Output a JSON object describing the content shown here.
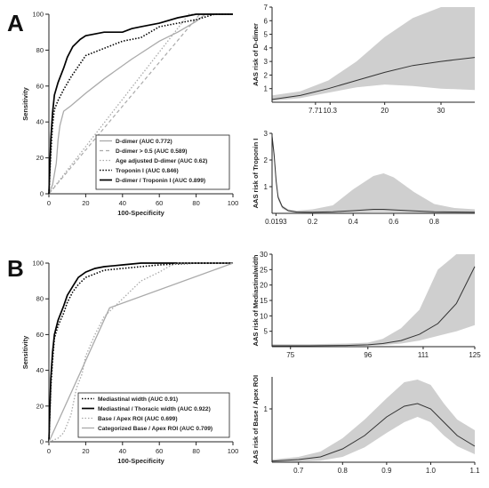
{
  "panel_labels": [
    "A",
    "B"
  ],
  "colors": {
    "axis": "#222222",
    "band": "#cfcfcf",
    "curve": "#333333",
    "light_series": "#aaaaaa",
    "dark_series": "#000000"
  },
  "chart_data": [
    {
      "id": "roc-a",
      "type": "line",
      "xlabel": "100-Specificity",
      "ylabel": "Sensitivity",
      "xlim": [
        0,
        100
      ],
      "ylim": [
        0,
        100
      ],
      "x_ticks": [
        0,
        20,
        40,
        60,
        80,
        100
      ],
      "y_ticks": [
        0,
        20,
        40,
        60,
        80,
        100
      ],
      "grid": false,
      "legend_position": "bottom-right",
      "series": [
        {
          "name": "D-dimer  (AUC 0.772)",
          "style": "solid-light",
          "x": [
            0,
            2,
            4,
            5,
            6,
            8,
            12,
            20,
            30,
            45,
            48,
            60,
            70,
            80,
            85,
            100
          ],
          "y": [
            0,
            5,
            17,
            30,
            38,
            46,
            49,
            56,
            64,
            75,
            77,
            85,
            90,
            96,
            100,
            100
          ]
        },
        {
          "name": "D-dimer > 0.5  (AUC 0.589)",
          "style": "dashed-light",
          "x": [
            0,
            82,
            100
          ],
          "y": [
            0,
            100,
            100
          ]
        },
        {
          "name": "Age adjusted D-dimer  (AUC 0.62)",
          "style": "dotted-light",
          "x": [
            0,
            76,
            100
          ],
          "y": [
            0,
            100,
            100
          ]
        },
        {
          "name": "Troponin I  (AUC 0.846)",
          "style": "dotted-dark",
          "x": [
            0,
            1,
            2,
            3,
            5,
            8,
            12,
            16,
            20,
            30,
            40,
            50,
            60,
            70,
            80,
            90,
            100
          ],
          "y": [
            0,
            22,
            38,
            47,
            52,
            58,
            65,
            71,
            77,
            81,
            85,
            87,
            93,
            95,
            97,
            100,
            100
          ]
        },
        {
          "name": "D-dimer / Troponin I  (AUC 0.899)",
          "style": "solid-dark",
          "x": [
            0,
            1,
            2,
            3,
            5,
            8,
            10,
            13,
            17,
            20,
            25,
            30,
            40,
            45,
            50,
            60,
            70,
            80,
            100
          ],
          "y": [
            0,
            30,
            45,
            55,
            62,
            70,
            76,
            82,
            86,
            88,
            89,
            90,
            90,
            92,
            93,
            95,
            98,
            100,
            100
          ]
        }
      ]
    },
    {
      "id": "ddimer-risk",
      "type": "area",
      "ylabel": "AAS risk of D-dimer",
      "xlim": [
        0,
        36
      ],
      "ylim": [
        0,
        7
      ],
      "x_ticks": [
        {
          "value": 7.71,
          "label": "7.71"
        },
        {
          "value": 10.3,
          "label": "10.3"
        },
        {
          "value": 20,
          "label": "20"
        },
        {
          "value": 30,
          "label": "30"
        }
      ],
      "y_ticks": [
        1,
        2,
        3,
        4,
        5,
        6,
        7
      ],
      "series": [
        {
          "x": [
            0,
            5,
            10,
            15,
            20,
            25,
            30,
            36
          ],
          "y": [
            0.2,
            0.5,
            1.0,
            1.6,
            2.2,
            2.7,
            3.0,
            3.3
          ],
          "lower": [
            0.1,
            0.3,
            0.7,
            1.1,
            1.3,
            1.2,
            1.0,
            0.9
          ],
          "upper": [
            0.5,
            0.8,
            1.6,
            3.0,
            4.8,
            6.2,
            7.0,
            7.0
          ]
        }
      ]
    },
    {
      "id": "troponin-risk",
      "type": "area",
      "ylabel": "AAS risk of Troponin I",
      "xlim": [
        0,
        1.0
      ],
      "ylim": [
        0,
        3
      ],
      "x_ticks": [
        {
          "value": 0.0193,
          "label": "0.0193"
        },
        {
          "value": 0.2,
          "label": "0.2"
        },
        {
          "value": 0.4,
          "label": "0.4"
        },
        {
          "value": 0.6,
          "label": "0.6"
        },
        {
          "value": 0.8,
          "label": "0.8"
        }
      ],
      "y_ticks": [
        1,
        2,
        3
      ],
      "series": [
        {
          "x": [
            0.0,
            0.01,
            0.02,
            0.03,
            0.05,
            0.08,
            0.12,
            0.2,
            0.3,
            0.4,
            0.5,
            0.55,
            0.6,
            0.7,
            0.8,
            0.9,
            1.0
          ],
          "y": [
            2.9,
            2.2,
            1.2,
            0.6,
            0.25,
            0.1,
            0.05,
            0.04,
            0.06,
            0.1,
            0.15,
            0.15,
            0.13,
            0.09,
            0.06,
            0.05,
            0.04
          ],
          "lower": [
            2.7,
            2.0,
            1.1,
            0.5,
            0.18,
            0.06,
            0.02,
            0.01,
            0.02,
            0.03,
            0.05,
            0.05,
            0.04,
            0.02,
            0.01,
            0.01,
            0.01
          ],
          "upper": [
            3.0,
            2.4,
            1.4,
            0.7,
            0.3,
            0.15,
            0.1,
            0.15,
            0.3,
            0.9,
            1.4,
            1.5,
            1.35,
            0.8,
            0.35,
            0.2,
            0.15
          ]
        }
      ]
    },
    {
      "id": "roc-b",
      "type": "line",
      "xlabel": "100-Specificity",
      "ylabel": "Sensitivity",
      "xlim": [
        0,
        100
      ],
      "ylim": [
        0,
        100
      ],
      "x_ticks": [
        0,
        20,
        40,
        60,
        80,
        100
      ],
      "y_ticks": [
        0,
        20,
        40,
        60,
        80,
        100
      ],
      "grid": false,
      "legend_position": "bottom-right",
      "series": [
        {
          "name": "Mediastinal width  (AUC 0.91)",
          "style": "dotted-dark",
          "x": [
            0,
            1,
            2,
            3,
            5,
            8,
            10,
            13,
            16,
            20,
            25,
            30,
            40,
            50,
            60,
            80,
            100
          ],
          "y": [
            0,
            30,
            45,
            58,
            65,
            72,
            78,
            84,
            88,
            92,
            94,
            96,
            97,
            98,
            99,
            100,
            100
          ]
        },
        {
          "name": "Mediastinal / Thoracic width  (AUC 0.922)",
          "style": "solid-dark",
          "x": [
            0,
            1,
            2,
            3,
            5,
            8,
            10,
            13,
            16,
            20,
            25,
            30,
            40,
            50,
            100
          ],
          "y": [
            0,
            35,
            50,
            60,
            68,
            76,
            82,
            87,
            92,
            95,
            97,
            98,
            99,
            100,
            100
          ]
        },
        {
          "name": "Base / Apex ROI  (AUC 0.699)",
          "style": "dotted-light",
          "x": [
            0,
            5,
            8,
            10,
            12,
            15,
            18,
            20,
            25,
            30,
            35,
            40,
            45,
            50,
            60,
            65,
            70,
            100
          ],
          "y": [
            0,
            2,
            5,
            10,
            15,
            30,
            38,
            48,
            60,
            70,
            75,
            80,
            85,
            90,
            95,
            98,
            100,
            100
          ]
        },
        {
          "name": "Categorized Base / Apex ROI  (AUC 0.709)",
          "style": "solid-light",
          "x": [
            0,
            33,
            100
          ],
          "y": [
            0,
            75,
            100
          ]
        }
      ]
    },
    {
      "id": "mediastinal-risk",
      "type": "area",
      "ylabel": "AAS risk of Mediastinalwidth",
      "xlim": [
        70,
        125
      ],
      "ylim": [
        0,
        30
      ],
      "x_ticks": [
        {
          "value": 75,
          "label": "75"
        },
        {
          "value": 96,
          "label": "96"
        },
        {
          "value": 111,
          "label": "111"
        },
        {
          "value": 125,
          "label": "125"
        }
      ],
      "y_ticks": [
        5,
        10,
        15,
        20,
        25,
        30
      ],
      "series": [
        {
          "x": [
            70,
            80,
            90,
            96,
            100,
            105,
            110,
            115,
            120,
            125
          ],
          "y": [
            0.3,
            0.3,
            0.4,
            0.6,
            1.0,
            2.0,
            4.0,
            7.5,
            14.0,
            26.0
          ],
          "lower": [
            0.1,
            0.1,
            0.2,
            0.3,
            0.5,
            1.0,
            2.0,
            3.5,
            5.0,
            7.0
          ],
          "upper": [
            0.8,
            0.8,
            1.0,
            1.3,
            2.5,
            6.0,
            12.0,
            25.0,
            30.0,
            30.0
          ]
        }
      ]
    },
    {
      "id": "base-apex-risk",
      "type": "area",
      "ylabel": "AAS risk of Base / Apex ROI",
      "xlim": [
        0.64,
        1.1
      ],
      "ylim": [
        0,
        1.6
      ],
      "x_ticks": [
        {
          "value": 0.7,
          "label": "0.7"
        },
        {
          "value": 0.8,
          "label": "0.8"
        },
        {
          "value": 0.9,
          "label": "0.9"
        },
        {
          "value": 1.0,
          "label": "1.0"
        },
        {
          "value": 1.1,
          "label": "1.1"
        }
      ],
      "y_ticks": [
        1
      ],
      "series": [
        {
          "x": [
            0.64,
            0.7,
            0.75,
            0.8,
            0.85,
            0.9,
            0.94,
            0.97,
            1.0,
            1.03,
            1.06,
            1.1
          ],
          "y": [
            0.02,
            0.05,
            0.1,
            0.25,
            0.5,
            0.85,
            1.05,
            1.1,
            1.0,
            0.75,
            0.5,
            0.3
          ],
          "lower": [
            0.0,
            0.01,
            0.03,
            0.1,
            0.28,
            0.55,
            0.75,
            0.85,
            0.75,
            0.5,
            0.3,
            0.15
          ],
          "upper": [
            0.05,
            0.1,
            0.2,
            0.45,
            0.8,
            1.2,
            1.5,
            1.55,
            1.45,
            1.1,
            0.8,
            0.6
          ]
        }
      ]
    }
  ]
}
